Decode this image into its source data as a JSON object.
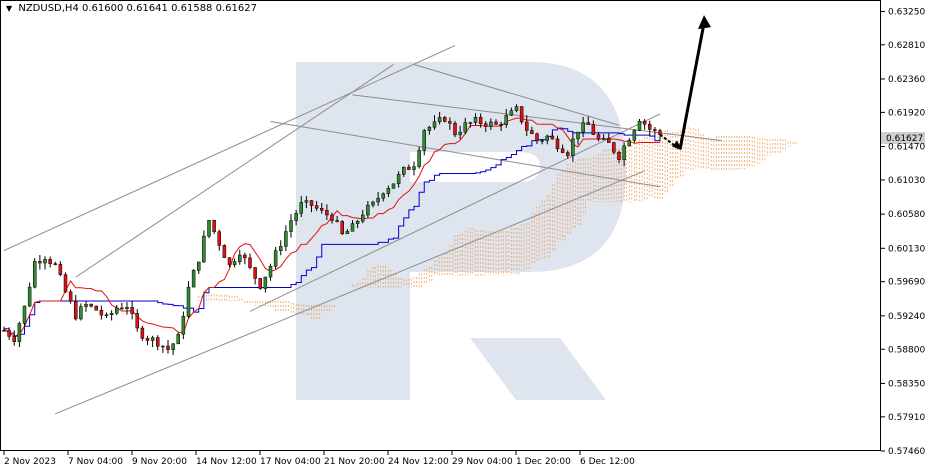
{
  "header": {
    "symbol_label": "NZDUSD,H4",
    "ohlc": "0.61600 0.61641 0.61588 0.61627",
    "collapse_icon": "triangle-down-icon"
  },
  "price_axis": {
    "ticks": [
      "0.63250",
      "0.62810",
      "0.62360",
      "0.61920",
      "0.61470",
      "0.61030",
      "0.60580",
      "0.60130",
      "0.59690",
      "0.59240",
      "0.58800",
      "0.58350",
      "0.57910",
      "0.57460"
    ],
    "current_price": "0.61627"
  },
  "time_axis": {
    "ticks": [
      "2 Nov 2023",
      "7 Nov 04:00",
      "9 Nov 20:00",
      "14 Nov 12:00",
      "17 Nov 04:00",
      "21 Nov 20:00",
      "24 Nov 12:00",
      "29 Nov 04:00",
      "1 Dec 20:00",
      "6 Dec 12:00"
    ]
  },
  "colors": {
    "bull": "#2e8b2e",
    "bear": "#e01010",
    "tenkan": "#e01010",
    "kijun": "#0000cc",
    "kumo": "#f2a05a",
    "trend": "#8c8c8c",
    "watermark": "#dfe5ef",
    "price_marker": "#cfcfcf"
  },
  "chart_data": {
    "type": "candlestick",
    "symbol": "NZDUSD",
    "timeframe": "H4",
    "price_range": [
      0.5746,
      0.634
    ],
    "last_price": 0.61627,
    "indicators": [
      "ichimoku-tenkan",
      "ichimoku-kijun",
      "ichimoku-kumo"
    ],
    "close_path": [
      [
        0,
        0.5905
      ],
      [
        2,
        0.5895
      ],
      [
        4,
        0.5935
      ],
      [
        6,
        0.5995
      ],
      [
        8,
        0.6003
      ],
      [
        10,
        0.599
      ],
      [
        12,
        0.5955
      ],
      [
        14,
        0.5925
      ],
      [
        16,
        0.5938
      ],
      [
        18,
        0.5932
      ],
      [
        20,
        0.592
      ],
      [
        22,
        0.5935
      ],
      [
        24,
        0.5938
      ],
      [
        26,
        0.5905
      ],
      [
        28,
        0.5895
      ],
      [
        30,
        0.589
      ],
      [
        32,
        0.588
      ],
      [
        34,
        0.5895
      ],
      [
        36,
        0.596
      ],
      [
        38,
        0.6
      ],
      [
        40,
        0.605
      ],
      [
        42,
        0.602
      ],
      [
        44,
        0.599
      ],
      [
        46,
        0.601
      ],
      [
        48,
        0.5985
      ],
      [
        50,
        0.5965
      ],
      [
        52,
        0.599
      ],
      [
        54,
        0.602
      ],
      [
        56,
        0.605
      ],
      [
        58,
        0.607
      ],
      [
        60,
        0.607
      ],
      [
        62,
        0.606
      ],
      [
        64,
        0.6055
      ],
      [
        66,
        0.603
      ],
      [
        68,
        0.604
      ],
      [
        70,
        0.606
      ],
      [
        72,
        0.607
      ],
      [
        74,
        0.609
      ],
      [
        76,
        0.61
      ],
      [
        78,
        0.6115
      ],
      [
        80,
        0.6125
      ],
      [
        82,
        0.617
      ],
      [
        84,
        0.6175
      ],
      [
        86,
        0.6185
      ],
      [
        88,
        0.6165
      ],
      [
        90,
        0.6175
      ],
      [
        92,
        0.618
      ],
      [
        94,
        0.6178
      ],
      [
        96,
        0.6175
      ],
      [
        98,
        0.6185
      ],
      [
        100,
        0.6195
      ],
      [
        102,
        0.617
      ],
      [
        104,
        0.6155
      ],
      [
        106,
        0.616
      ],
      [
        108,
        0.615
      ],
      [
        110,
        0.614
      ],
      [
        112,
        0.617
      ],
      [
        114,
        0.6175
      ],
      [
        116,
        0.6155
      ],
      [
        118,
        0.615
      ],
      [
        120,
        0.6135
      ],
      [
        122,
        0.616
      ],
      [
        124,
        0.6185
      ],
      [
        126,
        0.617
      ],
      [
        128,
        0.6162
      ]
    ],
    "forecast": {
      "pullback_target": 0.6143,
      "upside_target": 0.632
    }
  }
}
